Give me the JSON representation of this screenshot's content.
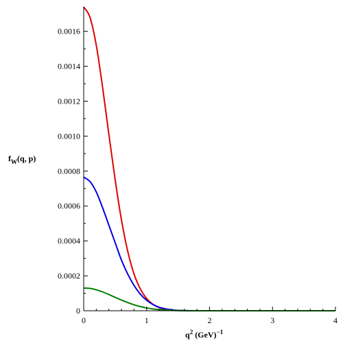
{
  "chart_data": {
    "type": "line",
    "title": "",
    "xlabel": {
      "base": "q",
      "sup": "2",
      "mid": " (GeV)",
      "sup2": "−1"
    },
    "ylabel": {
      "base": "f",
      "sub": "W",
      "rest": "(q, p)"
    },
    "xlim": [
      0,
      4
    ],
    "ylim": [
      0,
      0.00174
    ],
    "x_ticks": [
      0,
      1,
      2,
      3,
      4
    ],
    "x_tick_labels": [
      "0",
      "1",
      "2",
      "3",
      "4"
    ],
    "y_ticks": [
      0,
      0.0002,
      0.0004,
      0.0006,
      0.0008,
      0.001,
      0.0012,
      0.0014,
      0.0016
    ],
    "y_tick_labels": [
      "0",
      "0.0002",
      "0.0004",
      "0.0006",
      "0.0008",
      "0.0010",
      "0.0012",
      "0.0014",
      "0.0016"
    ],
    "grid": false,
    "legend": "none",
    "series": [
      {
        "color": "#e00000",
        "x": [
          0,
          0.1,
          0.2,
          0.3,
          0.4,
          0.5,
          0.6,
          0.7,
          0.8,
          0.9,
          1.0,
          1.1,
          1.2,
          1.3,
          1.4,
          1.5,
          1.6,
          1.8,
          2.0,
          2.5,
          3.0,
          3.5,
          4.0
        ],
        "y": [
          0.00174,
          0.00168,
          0.00152,
          0.00128,
          0.00101,
          0.00075,
          0.00052,
          0.00034,
          0.00021,
          0.000125,
          7e-05,
          3.7e-05,
          1.8e-05,
          8e-06,
          3.5e-06,
          1.4e-06,
          5e-07,
          1e-07,
          0,
          0,
          0,
          0,
          0
        ]
      },
      {
        "color": "#0000e0",
        "x": [
          0,
          0.1,
          0.2,
          0.3,
          0.4,
          0.5,
          0.6,
          0.7,
          0.8,
          0.9,
          1.0,
          1.1,
          1.2,
          1.3,
          1.4,
          1.5,
          1.6,
          1.8,
          2.0,
          2.5,
          3.0,
          3.5,
          4.0
        ],
        "y": [
          0.000765,
          0.00074,
          0.00068,
          0.00059,
          0.00049,
          0.00039,
          0.00029,
          0.00021,
          0.000145,
          9.5e-05,
          6e-05,
          3.6e-05,
          2e-05,
          1.1e-05,
          5.5e-06,
          2.6e-06,
          1.2e-06,
          2e-07,
          0,
          0,
          0,
          0,
          0
        ]
      },
      {
        "color": "#008000",
        "x": [
          0,
          0.1,
          0.2,
          0.3,
          0.4,
          0.5,
          0.6,
          0.7,
          0.8,
          0.9,
          1.0,
          1.1,
          1.2,
          1.3,
          1.4,
          1.5,
          1.6,
          1.8,
          2.0,
          2.5,
          3.0,
          3.5,
          4.0
        ],
        "y": [
          0.00013,
          0.000128,
          0.00012,
          0.000108,
          9.3e-05,
          7.7e-05,
          6.1e-05,
          4.7e-05,
          3.4e-05,
          2.4e-05,
          1.6e-05,
          1.05e-05,
          6.5e-06,
          3.8e-06,
          2.1e-06,
          1.1e-06,
          6e-07,
          1.2e-07,
          0,
          0,
          0,
          0,
          0
        ]
      }
    ]
  }
}
